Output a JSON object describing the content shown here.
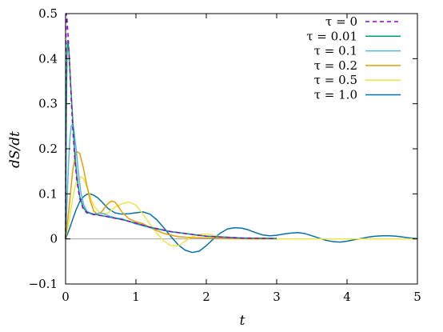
{
  "chart_data": {
    "type": "line",
    "xlabel": "t",
    "ylabel": "dS/dt",
    "xlim": [
      0,
      5
    ],
    "ylim": [
      -0.1,
      0.5
    ],
    "xticks": [
      "0",
      "1",
      "2",
      "3",
      "4",
      "5"
    ],
    "yticks": [
      "−0.1",
      "0",
      "0.1",
      "0.2",
      "0.3",
      "0.4",
      "0.5"
    ],
    "zero_line": true,
    "legend_position": "top-right",
    "series": [
      {
        "name": "τ = 0",
        "color": "#9400d3",
        "dashed": true,
        "x": [
          0,
          0.003,
          0.006,
          0.01,
          0.02,
          0.04,
          0.06,
          0.08,
          0.1,
          0.13,
          0.16,
          0.2,
          0.25,
          0.3,
          0.4,
          0.5,
          0.6,
          0.8,
          1.0,
          1.2,
          1.5,
          2.0,
          2.5,
          3.0
        ],
        "y": [
          0,
          0.3,
          0.46,
          0.5,
          0.49,
          0.44,
          0.38,
          0.31,
          0.25,
          0.18,
          0.13,
          0.09,
          0.067,
          0.058,
          0.054,
          0.052,
          0.049,
          0.043,
          0.035,
          0.026,
          0.016,
          0.006,
          0.002,
          0.001
        ]
      },
      {
        "name": "τ = 0.01",
        "color": "#009e73",
        "dashed": false,
        "x": [
          0,
          0.01,
          0.02,
          0.03,
          0.04,
          0.05,
          0.07,
          0.1,
          0.13,
          0.16,
          0.2,
          0.25,
          0.3,
          0.4,
          0.5,
          0.6,
          0.8,
          1.0,
          1.2,
          1.5,
          2.0,
          2.5,
          3.0
        ],
        "y": [
          0,
          0.25,
          0.41,
          0.44,
          0.43,
          0.41,
          0.35,
          0.27,
          0.19,
          0.14,
          0.095,
          0.07,
          0.06,
          0.055,
          0.052,
          0.049,
          0.043,
          0.035,
          0.026,
          0.016,
          0.006,
          0.002,
          0.001
        ]
      },
      {
        "name": "τ = 0.1",
        "color": "#56b4e9",
        "dashed": false,
        "x": [
          0,
          0.02,
          0.04,
          0.06,
          0.08,
          0.1,
          0.12,
          0.15,
          0.18,
          0.22,
          0.26,
          0.3,
          0.35,
          0.4,
          0.5,
          0.6,
          0.7,
          0.8,
          1.0,
          1.2,
          1.5,
          2.0,
          2.5,
          3.0
        ],
        "y": [
          0,
          0.08,
          0.16,
          0.22,
          0.25,
          0.255,
          0.24,
          0.2,
          0.15,
          0.1,
          0.075,
          0.062,
          0.056,
          0.055,
          0.058,
          0.052,
          0.047,
          0.045,
          0.033,
          0.025,
          0.016,
          0.006,
          0.002,
          0.001
        ]
      },
      {
        "name": "τ = 0.2",
        "color": "#e69f00",
        "dashed": false,
        "x": [
          0,
          0.05,
          0.1,
          0.15,
          0.2,
          0.25,
          0.3,
          0.35,
          0.4,
          0.45,
          0.5,
          0.55,
          0.6,
          0.65,
          0.7,
          0.75,
          0.8,
          0.9,
          1.0,
          1.1,
          1.2,
          1.4,
          1.6,
          1.8,
          2.0,
          2.3,
          2.6,
          3.0
        ],
        "y": [
          0,
          0.07,
          0.15,
          0.195,
          0.19,
          0.16,
          0.12,
          0.085,
          0.062,
          0.055,
          0.058,
          0.068,
          0.078,
          0.084,
          0.082,
          0.072,
          0.06,
          0.045,
          0.038,
          0.034,
          0.025,
          0.012,
          0.005,
          0.003,
          0.002,
          0.001,
          0.0,
          0.0
        ]
      },
      {
        "name": "τ = 0.5",
        "color": "#f0e442",
        "dashed": false,
        "x": [
          0,
          0.05,
          0.1,
          0.15,
          0.2,
          0.25,
          0.3,
          0.35,
          0.4,
          0.5,
          0.6,
          0.7,
          0.8,
          0.9,
          1.0,
          1.1,
          1.2,
          1.3,
          1.4,
          1.5,
          1.6,
          1.7,
          1.8,
          1.9,
          2.0,
          2.1,
          2.2,
          2.4,
          2.6,
          2.8,
          3.0,
          3.5,
          4.0,
          5.0
        ],
        "y": [
          0,
          0.04,
          0.09,
          0.125,
          0.138,
          0.135,
          0.118,
          0.095,
          0.073,
          0.056,
          0.057,
          0.07,
          0.078,
          0.082,
          0.075,
          0.055,
          0.033,
          0.012,
          -0.005,
          -0.015,
          -0.015,
          -0.005,
          0.005,
          0.01,
          0.011,
          0.008,
          0.004,
          0.002,
          0.001,
          0.0,
          0.0,
          0.0,
          0.0,
          0.0
        ]
      },
      {
        "name": "τ = 1.0",
        "color": "#0072b2",
        "dashed": false,
        "x": [
          0,
          0.05,
          0.1,
          0.15,
          0.2,
          0.25,
          0.3,
          0.35,
          0.4,
          0.45,
          0.5,
          0.6,
          0.7,
          0.8,
          0.9,
          1.0,
          1.1,
          1.2,
          1.3,
          1.4,
          1.5,
          1.6,
          1.7,
          1.8,
          1.9,
          2.0,
          2.1,
          2.2,
          2.3,
          2.4,
          2.5,
          2.6,
          2.7,
          2.8,
          2.9,
          3.0,
          3.1,
          3.2,
          3.3,
          3.4,
          3.5,
          3.6,
          3.7,
          3.8,
          3.9,
          4.0,
          4.1,
          4.2,
          4.3,
          4.4,
          4.5,
          4.6,
          4.7,
          4.8,
          4.9,
          5.0
        ],
        "y": [
          0,
          0.02,
          0.043,
          0.065,
          0.082,
          0.093,
          0.099,
          0.1,
          0.097,
          0.092,
          0.085,
          0.068,
          0.058,
          0.055,
          0.056,
          0.058,
          0.06,
          0.055,
          0.042,
          0.024,
          0.005,
          -0.013,
          -0.025,
          -0.03,
          -0.027,
          -0.015,
          0.0,
          0.013,
          0.022,
          0.025,
          0.024,
          0.02,
          0.014,
          0.009,
          0.007,
          0.008,
          0.011,
          0.013,
          0.014,
          0.012,
          0.007,
          0.002,
          -0.003,
          -0.006,
          -0.007,
          -0.005,
          -0.002,
          0.001,
          0.004,
          0.006,
          0.007,
          0.007,
          0.006,
          0.004,
          0.002,
          0.001
        ]
      }
    ]
  }
}
